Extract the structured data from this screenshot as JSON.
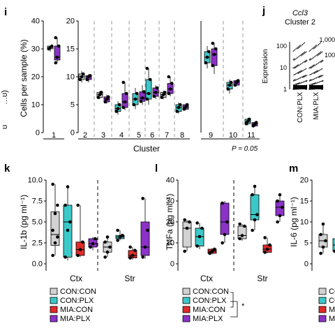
{
  "colors": {
    "con_con": "#d2d2d2",
    "con_plx": "#3cc8c8",
    "mia_con": "#e02a2a",
    "mia_plx": "#8c32c8",
    "axis": "#000000",
    "dash": "#9a9a9a"
  },
  "panel_i": {
    "letter": "i",
    "ylabel": "Cells per sample (%)",
    "xlabel": "Cluster",
    "pvalue": "P = 0.05",
    "left_edge_label": "…ʊ)",
    "left_edge_label2": "ʊ"
  },
  "panel_j": {
    "letter": "j",
    "title": "Ccl3",
    "subtitle": "Cluster 2",
    "ylabel": "Expression",
    "groups": [
      "CON:PLX",
      "MIA:PLX"
    ],
    "yticks": [
      "1",
      "10",
      "100"
    ],
    "yticks_right": [
      "1,000",
      "100"
    ]
  },
  "panel_k": {
    "letter": "k",
    "ylabel": "IL-1b (pg ml⁻¹)"
  },
  "panel_l": {
    "letter": "l",
    "ylabel": "TNFa (pg ml⁻¹)",
    "sig": "*"
  },
  "panel_m": {
    "letter": "m",
    "ylabel": "IL-6 (pg ml⁻¹)"
  },
  "regions": [
    "Ctx",
    "Str"
  ],
  "legend": [
    "CON:CON",
    "CON:PLX",
    "MIA:CON",
    "MIA:PLX"
  ],
  "chart_data": [
    {
      "type": "box",
      "panel": "i",
      "ylim_a": [
        0,
        40
      ],
      "yticks_a": [
        "0",
        "10",
        "20",
        "30",
        "40"
      ],
      "ylim_b": [
        0,
        20
      ],
      "yticks_b": [
        "0",
        "5",
        "10",
        "15",
        "20"
      ],
      "ylim_c": [
        0,
        20
      ],
      "yticks_c": [],
      "clusters": [
        "1",
        "2",
        "3",
        "4",
        "5",
        "6",
        "7",
        "8",
        "9",
        "10",
        "11"
      ],
      "boxes": [
        {
          "cluster": "1",
          "group": "con_con",
          "q1": 30,
          "med": 30.5,
          "q3": 31,
          "lo": 29,
          "hi": 31,
          "pts": [
            30,
            30.5,
            31
          ]
        },
        {
          "cluster": "1",
          "group": "mia_plx",
          "q1": 26,
          "med": 27,
          "q3": 31,
          "lo": 25,
          "hi": 34,
          "pts": [
            25,
            27,
            31,
            34
          ]
        },
        {
          "cluster": "2",
          "group": "con_con",
          "q1": 9.5,
          "med": 10,
          "q3": 10.5,
          "lo": 9,
          "hi": 11,
          "pts": [
            9.5,
            10,
            10.5
          ]
        },
        {
          "cluster": "2",
          "group": "mia_plx",
          "q1": 9.5,
          "med": 10,
          "q3": 10.2,
          "lo": 9,
          "hi": 10.5,
          "pts": [
            9.5,
            10,
            10.2
          ]
        },
        {
          "cluster": "3",
          "group": "con_con",
          "q1": 6.3,
          "med": 6.8,
          "q3": 7.2,
          "lo": 6,
          "hi": 7.5,
          "pts": [
            6.3,
            6.8,
            7.2
          ]
        },
        {
          "cluster": "3",
          "group": "mia_plx",
          "q1": 5.5,
          "med": 6,
          "q3": 6.4,
          "lo": 5.2,
          "hi": 6.8,
          "pts": [
            5.5,
            6,
            6.4
          ]
        },
        {
          "cluster": "4",
          "group": "con_plx",
          "q1": 3.8,
          "med": 4.3,
          "q3": 5,
          "lo": 3.2,
          "hi": 5.6,
          "pts": [
            3.8,
            4.3,
            5
          ]
        },
        {
          "cluster": "4",
          "group": "mia_plx",
          "q1": 4.5,
          "med": 5.5,
          "q3": 7,
          "lo": 4,
          "hi": 9,
          "pts": [
            4.5,
            5.5,
            7,
            9
          ]
        },
        {
          "cluster": "5",
          "group": "con_plx",
          "q1": 5,
          "med": 6,
          "q3": 7,
          "lo": 4.2,
          "hi": 8,
          "pts": [
            5,
            6,
            7
          ]
        },
        {
          "cluster": "5",
          "group": "mia_plx",
          "q1": 5.6,
          "med": 6.2,
          "q3": 7.3,
          "lo": 5,
          "hi": 8.5,
          "pts": [
            5.6,
            6.2,
            7.3
          ]
        },
        {
          "cluster": "6",
          "group": "con_plx",
          "q1": 6,
          "med": 7,
          "q3": 9.5,
          "lo": 5,
          "hi": 11.5,
          "pts": [
            6,
            7,
            9.5,
            11.5
          ]
        },
        {
          "cluster": "6",
          "group": "mia_plx",
          "q1": 6.5,
          "med": 7.2,
          "q3": 8,
          "lo": 6,
          "hi": 8.5,
          "pts": [
            6.5,
            7.2,
            8
          ]
        },
        {
          "cluster": "7",
          "group": "con_con",
          "q1": 6.3,
          "med": 6.8,
          "q3": 7.2,
          "lo": 6,
          "hi": 7.5,
          "pts": [
            6.3,
            6.8,
            7.2
          ]
        },
        {
          "cluster": "7",
          "group": "mia_plx",
          "q1": 7,
          "med": 7.8,
          "q3": 8.8,
          "lo": 6.5,
          "hi": 10,
          "pts": [
            7,
            7.8,
            8.8,
            10
          ]
        },
        {
          "cluster": "8",
          "group": "con_plx",
          "q1": 3.8,
          "med": 4.5,
          "q3": 5,
          "lo": 3.4,
          "hi": 5.4,
          "pts": [
            3.8,
            4.5,
            5
          ]
        },
        {
          "cluster": "8",
          "group": "mia_plx",
          "q1": 4.2,
          "med": 4.6,
          "q3": 5,
          "lo": 4,
          "hi": 5.2,
          "pts": [
            4.2,
            4.6,
            5
          ]
        },
        {
          "cluster": "9",
          "group": "con_plx",
          "q1": 12.5,
          "med": 13.5,
          "q3": 14.5,
          "lo": 11.5,
          "hi": 15.5,
          "pts": [
            12.5,
            13.5,
            14.5
          ]
        },
        {
          "cluster": "9",
          "group": "mia_plx",
          "q1": 12,
          "med": 14,
          "q3": 15,
          "lo": 10.5,
          "hi": 16,
          "pts": [
            12,
            14,
            15,
            16
          ]
        },
        {
          "cluster": "10",
          "group": "con_plx",
          "q1": 7.8,
          "med": 8.5,
          "q3": 9,
          "lo": 7,
          "hi": 9.5,
          "pts": [
            7.8,
            8.5,
            9
          ]
        },
        {
          "cluster": "10",
          "group": "mia_plx",
          "q1": 8.5,
          "med": 9,
          "q3": 9.3,
          "lo": 8.3,
          "hi": 9.5,
          "pts": [
            8.5,
            9,
            9.3
          ]
        },
        {
          "cluster": "11",
          "group": "con_plx",
          "q1": 1.6,
          "med": 2,
          "q3": 2.4,
          "lo": 1.3,
          "hi": 2.6,
          "pts": [
            1.6,
            2,
            2.4
          ]
        },
        {
          "cluster": "11",
          "group": "mia_plx",
          "q1": 1.2,
          "med": 1.5,
          "q3": 1.8,
          "lo": 1,
          "hi": 2,
          "pts": [
            1.2,
            1.5,
            1.8
          ]
        }
      ]
    },
    {
      "type": "box",
      "panel": "k",
      "ylim": [
        0,
        10
      ],
      "yticks": [
        "0.0",
        "2.5",
        "5.0",
        "7.5",
        "10.0"
      ],
      "boxes": [
        {
          "region": "Ctx",
          "group": "con_con",
          "q1": 2.2,
          "med": 3.5,
          "q3": 6.2,
          "lo": 1,
          "hi": 9.5,
          "pts": [
            1,
            2.5,
            3.2,
            4,
            6,
            7,
            9.5
          ]
        },
        {
          "region": "Ctx",
          "group": "con_plx",
          "q1": 0.8,
          "med": 5,
          "q3": 7,
          "lo": 0.4,
          "hi": 9.2,
          "pts": [
            0.8,
            4,
            5,
            7,
            9.2
          ]
        },
        {
          "region": "Ctx",
          "group": "mia_con",
          "q1": 1,
          "med": 1.7,
          "q3": 2.6,
          "lo": 0.8,
          "hi": 7,
          "pts": [
            1,
            1.7,
            2.6,
            7
          ]
        },
        {
          "region": "Ctx",
          "group": "mia_plx",
          "q1": 2,
          "med": 2.4,
          "q3": 3,
          "lo": 1.6,
          "hi": 3.2,
          "pts": [
            2,
            2.4,
            3
          ]
        },
        {
          "region": "Str",
          "group": "con_con",
          "q1": 1.4,
          "med": 2,
          "q3": 2.6,
          "lo": 0.8,
          "hi": 3.2,
          "pts": [
            0.8,
            1.4,
            2,
            2.6,
            3.2
          ]
        },
        {
          "region": "Str",
          "group": "con_plx",
          "q1": 3,
          "med": 3.2,
          "q3": 3.4,
          "lo": 2.8,
          "hi": 4,
          "pts": [
            2.8,
            3.2,
            3.4,
            4
          ]
        },
        {
          "region": "Str",
          "group": "mia_con",
          "q1": 0.7,
          "med": 1,
          "q3": 1.6,
          "lo": 0.5,
          "hi": 2,
          "pts": [
            0.7,
            1,
            1.6,
            2
          ]
        },
        {
          "region": "Str",
          "group": "mia_plx",
          "q1": 1,
          "med": 2,
          "q3": 5,
          "lo": 0.6,
          "hi": 7.8,
          "pts": [
            0.8,
            2,
            4,
            7.8
          ]
        }
      ]
    },
    {
      "type": "box",
      "panel": "l",
      "ylim": [
        0,
        40
      ],
      "yticks": [
        "0",
        "10",
        "20",
        "30",
        "40"
      ],
      "boxes": [
        {
          "region": "Ctx",
          "group": "con_con",
          "q1": 8,
          "med": 17,
          "q3": 20,
          "lo": 6,
          "hi": 21,
          "pts": [
            6,
            17,
            20,
            21
          ]
        },
        {
          "region": "Ctx",
          "group": "con_plx",
          "q1": 8.5,
          "med": 13,
          "q3": 17,
          "lo": 7,
          "hi": 19.5,
          "pts": [
            8.5,
            13,
            17,
            19.5
          ]
        },
        {
          "region": "Ctx",
          "group": "mia_con",
          "q1": 5,
          "med": 6,
          "q3": 7,
          "lo": 4.5,
          "hi": 7.5,
          "pts": [
            5,
            6,
            7
          ]
        },
        {
          "region": "Ctx",
          "group": "mia_plx",
          "q1": 14,
          "med": 20,
          "q3": 29,
          "lo": 10,
          "hi": 30,
          "pts": [
            10,
            14,
            20,
            29
          ]
        },
        {
          "region": "Str",
          "group": "con_con",
          "q1": 12,
          "med": 13.5,
          "q3": 18,
          "lo": 11,
          "hi": 19,
          "pts": [
            12,
            13.5,
            18,
            19
          ]
        },
        {
          "region": "Str",
          "group": "con_plx",
          "q1": 21,
          "med": 23.5,
          "q3": 33,
          "lo": 16,
          "hi": 37,
          "pts": [
            16,
            21,
            23.5,
            33,
            37
          ]
        },
        {
          "region": "Str",
          "group": "mia_con",
          "q1": 5.5,
          "med": 7,
          "q3": 9,
          "lo": 5,
          "hi": 12.5,
          "pts": [
            5.5,
            7,
            9,
            12.5
          ]
        },
        {
          "region": "Str",
          "group": "mia_plx",
          "q1": 23,
          "med": 27,
          "q3": 30,
          "lo": 20,
          "hi": 33,
          "pts": [
            20,
            23,
            27,
            30,
            33
          ]
        }
      ]
    },
    {
      "type": "box",
      "panel": "m",
      "ylim": [
        0,
        20
      ],
      "yticks": [
        "0",
        "5",
        "10",
        "15",
        "20"
      ],
      "boxes": [
        {
          "region": "Ctx",
          "group": "con_con",
          "q1": 4,
          "med": 5.5,
          "q3": 7,
          "lo": 2.5,
          "hi": 9.5,
          "pts": [
            2.5,
            4,
            5.5,
            7,
            9.5
          ]
        },
        {
          "region": "Ctx",
          "group": "con_plx",
          "q1": 3,
          "med": 4.5,
          "q3": 6,
          "lo": 2,
          "hi": 7,
          "pts": [
            3,
            4.5,
            6
          ]
        }
      ]
    }
  ]
}
